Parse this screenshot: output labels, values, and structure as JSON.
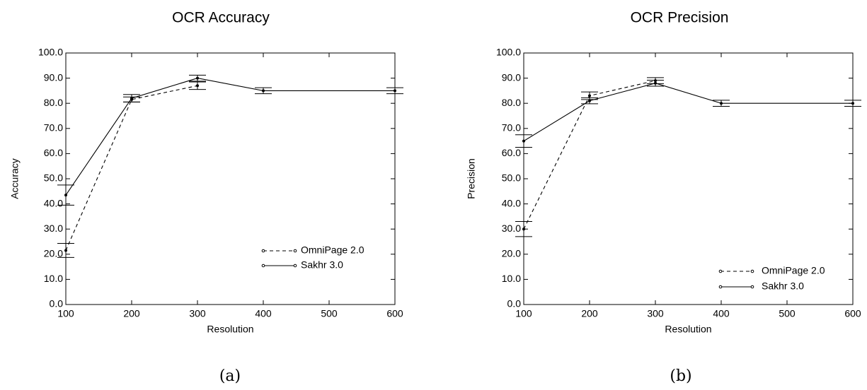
{
  "chart_data": [
    {
      "type": "line",
      "panel": "(a)",
      "title": "OCR Accuracy",
      "xlabel": "Resolution",
      "ylabel": "Accuracy",
      "x_ticks": [
        "100",
        "200",
        "300",
        "400",
        "500",
        "600"
      ],
      "y_ticks": [
        "0.0",
        "10.0",
        "20.0",
        "30.0",
        "40.0",
        "50.0",
        "60.0",
        "70.0",
        "80.0",
        "90.0",
        "100.0"
      ],
      "xlim": [
        100,
        600
      ],
      "ylim": [
        0,
        100
      ],
      "legend_position": "lower-right",
      "series": [
        {
          "name": "OmniPage 2.0",
          "style": "dashed",
          "points": [
            {
              "x": 100,
              "y": 21.5,
              "err": 2.8
            },
            {
              "x": 200,
              "y": 81.5,
              "err": 1.0
            },
            {
              "x": 300,
              "y": 87.0,
              "err": 1.5
            }
          ]
        },
        {
          "name": "Sakhr 3.0",
          "style": "solid",
          "points": [
            {
              "x": 100,
              "y": 43.5,
              "err": 4.0
            },
            {
              "x": 200,
              "y": 82.0,
              "err": 1.5
            },
            {
              "x": 300,
              "y": 90.0,
              "err": 1.2
            },
            {
              "x": 400,
              "y": 85.0,
              "err": 1.2
            },
            {
              "x": 600,
              "y": 85.0,
              "err": 1.2
            }
          ]
        }
      ]
    },
    {
      "type": "line",
      "panel": "(b)",
      "title": "OCR Precision",
      "xlabel": "Resolution",
      "ylabel": "Precision",
      "x_ticks": [
        "100",
        "200",
        "300",
        "400",
        "500",
        "600"
      ],
      "y_ticks": [
        "0.0",
        "10.0",
        "20.0",
        "30.0",
        "40.0",
        "50.0",
        "60.0",
        "70.0",
        "80.0",
        "90.0",
        "100.0"
      ],
      "xlim": [
        100,
        600
      ],
      "ylim": [
        0,
        100
      ],
      "legend_position": "lower-right",
      "series": [
        {
          "name": "OmniPage 2.0",
          "style": "dashed",
          "points": [
            {
              "x": 100,
              "y": 30.0,
              "err": 3.0
            },
            {
              "x": 200,
              "y": 83.0,
              "err": 1.5
            },
            {
              "x": 300,
              "y": 89.0,
              "err": 1.2
            }
          ]
        },
        {
          "name": "Sakhr 3.0",
          "style": "solid",
          "points": [
            {
              "x": 100,
              "y": 65.0,
              "err": 2.5
            },
            {
              "x": 200,
              "y": 81.0,
              "err": 1.2
            },
            {
              "x": 300,
              "y": 88.0,
              "err": 1.2
            },
            {
              "x": 400,
              "y": 80.0,
              "err": 1.2
            },
            {
              "x": 600,
              "y": 80.0,
              "err": 1.2
            }
          ]
        }
      ]
    }
  ]
}
